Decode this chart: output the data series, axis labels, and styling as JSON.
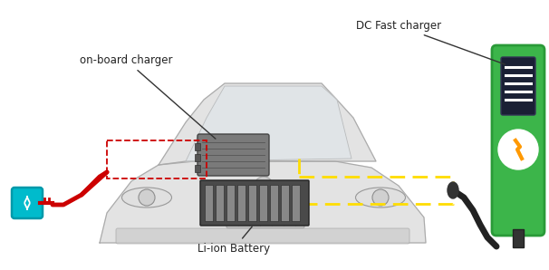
{
  "bg_color": "#ffffff",
  "labels": {
    "on_board_charger": "on-board charger",
    "dc_fast_charger": "DC Fast charger",
    "li_ion_battery": "Li-ion Battery"
  },
  "car_color": "#cccccc",
  "charger_green": "#3cb54a",
  "charger_dark_green": "#2a9a38",
  "cable_black": "#222222",
  "cable_red": "#cc0000",
  "dashed_yellow": "#ffdd00",
  "outlet_cyan": "#00bbcc",
  "label_fontsize": 8.5,
  "figsize": [
    6.06,
    2.98
  ],
  "dpi": 100
}
